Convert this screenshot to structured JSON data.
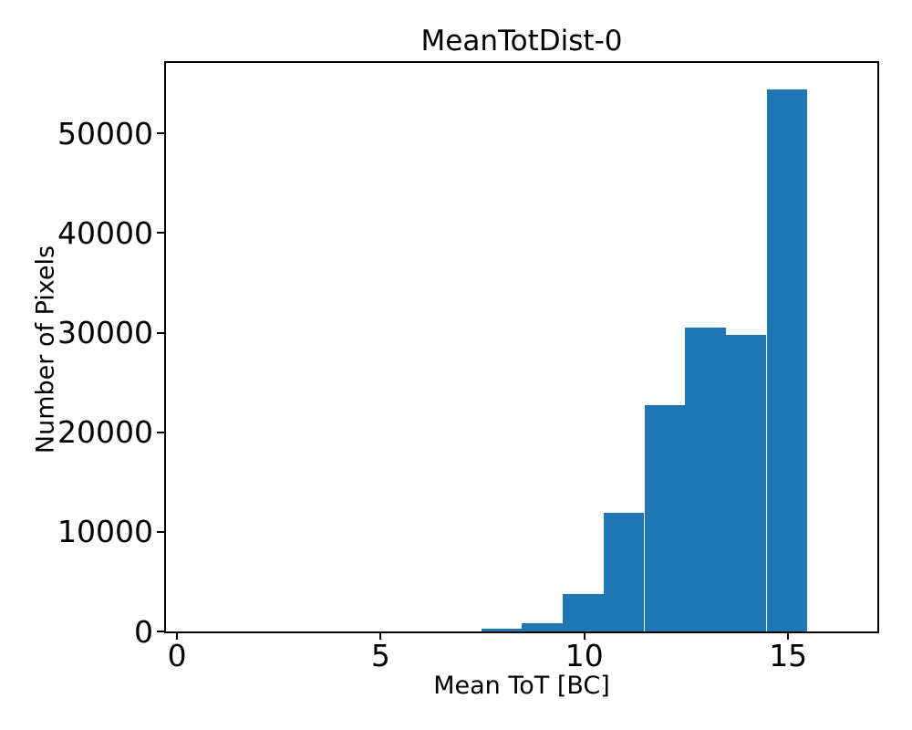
{
  "figure": {
    "background": "#ffffff",
    "text_color": "#000000"
  },
  "chart_data": {
    "type": "bar",
    "subtype": "histogram",
    "title": "MeanTotDist-0",
    "xlabel": "Mean ToT [BC]",
    "ylabel": "Number of Pixels",
    "bar_color": "#1f77b4",
    "bin_edges": [
      7.47,
      8.47,
      9.47,
      10.47,
      11.47,
      12.47,
      13.47,
      14.47,
      15.47
    ],
    "counts": [
      250,
      800,
      3800,
      11900,
      22700,
      30500,
      29800,
      54400
    ],
    "xlim": [
      -0.27,
      17.19
    ],
    "ylim": [
      0,
      57080
    ],
    "xticks": [
      0,
      5,
      10,
      15
    ],
    "xtick_labels": [
      "0",
      "5",
      "10",
      "15"
    ],
    "yticks": [
      0,
      10000,
      20000,
      30000,
      40000,
      50000
    ],
    "ytick_labels": [
      "0",
      "10000",
      "20000",
      "30000",
      "40000",
      "50000"
    ],
    "grid": false,
    "legend": null
  }
}
